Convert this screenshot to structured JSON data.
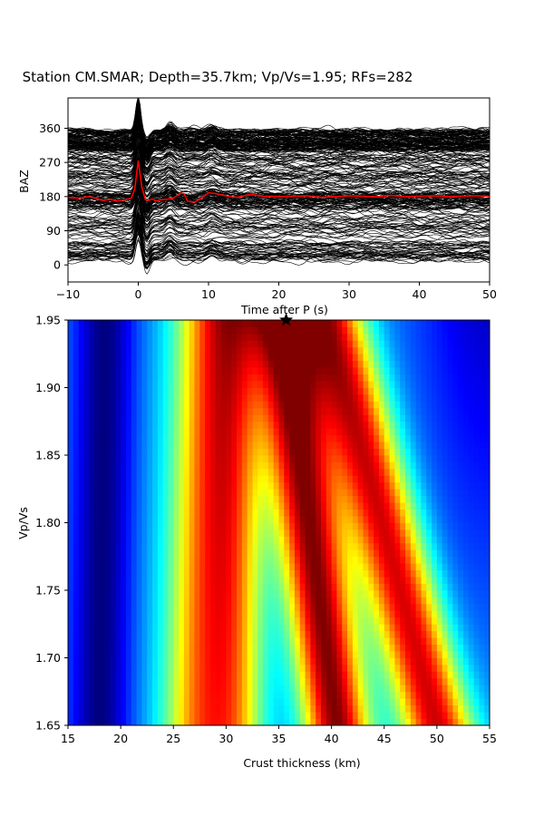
{
  "figure": {
    "title": "Station CM.SMAR; Depth=35.7km; Vp/Vs=1.95; RFs=282"
  },
  "chart_data": [
    {
      "type": "line",
      "description_role": "receiver-function-stack",
      "xlabel": "Time after P (s)",
      "ylabel": "BAZ",
      "xlim": [
        -10,
        50
      ],
      "ylim": [
        -45,
        440
      ],
      "x_ticks": [
        -10,
        0,
        10,
        20,
        30,
        40,
        50
      ],
      "y_ticks": [
        0,
        90,
        180,
        270,
        360
      ],
      "trace_count": 282,
      "trace_color": "#000000",
      "stack_color": "#ff0000",
      "stack_series": {
        "baseline": 180,
        "x": [
          -10,
          -8.5,
          -7,
          -6,
          -5,
          -4,
          -3,
          -2,
          -1,
          -0.5,
          0,
          0.5,
          1,
          1.5,
          2,
          2.5,
          3,
          4,
          5,
          6,
          6.5,
          7,
          8,
          9,
          10,
          11,
          12,
          13,
          14,
          15,
          16,
          17,
          18,
          19,
          20,
          22,
          24,
          26,
          28,
          30,
          32,
          34,
          36,
          38,
          40,
          42,
          44,
          46,
          48,
          50
        ],
        "y": [
          178,
          176,
          180,
          175,
          170,
          173,
          168,
          171,
          176,
          200,
          275,
          205,
          172,
          170,
          174,
          168,
          171,
          173,
          176,
          189,
          188,
          168,
          165,
          176,
          190,
          188,
          184,
          180,
          178,
          182,
          186,
          183,
          180,
          181,
          180,
          181,
          182,
          178,
          180,
          182,
          181,
          179,
          183,
          180,
          181,
          182,
          180,
          181,
          182,
          181
        ]
      }
    },
    {
      "type": "heatmap",
      "description_role": "h-k-stacking-grid",
      "xlabel": "Crust thickness (km)",
      "ylabel": "Vp/Vs",
      "xlim": [
        15,
        55
      ],
      "ylim": [
        1.65,
        1.95
      ],
      "x_ticks": [
        15,
        20,
        25,
        30,
        35,
        40,
        45,
        50,
        55
      ],
      "y_ticks": [
        1.65,
        1.7,
        1.75,
        1.8,
        1.85,
        1.9,
        1.95
      ],
      "colormap": "jet",
      "best_fit": {
        "thickness": 35.7,
        "vpvs": 1.95
      },
      "ridges": [
        {
          "role": "main-maximum",
          "h_at_1_95": 35.2,
          "h_at_1_65": 40.5,
          "width": 2.2,
          "amp": 1.0
        },
        {
          "role": "second-maximum",
          "h_at_1_95": 39.8,
          "h_at_1_65": 50.0,
          "width": 2.4,
          "amp": 0.9
        },
        {
          "role": "third-band",
          "h_at_1_95": 28.5,
          "h_at_1_65": 27.5,
          "width": 2.5,
          "amp": 0.65
        },
        {
          "role": "fourth-band",
          "h_at_1_95": 31.0,
          "h_at_1_65": 31.0,
          "width": 2.0,
          "amp": 0.45
        },
        {
          "role": "minimum",
          "h_at_1_95": 18.5,
          "h_at_1_65": 18.0,
          "width": 2.0,
          "amp": -0.35
        }
      ]
    }
  ]
}
